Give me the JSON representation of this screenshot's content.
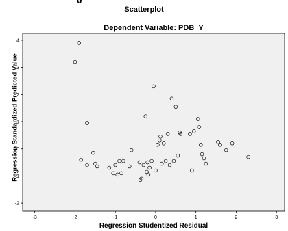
{
  "page_fragment": "g",
  "chart_data": {
    "type": "scatter",
    "title": "Scatterplot",
    "subtitle": "Dependent Variable: PDB_Y",
    "xlabel": "Regression Studentized Residual",
    "ylabel": "Regression Standardized Predicted Value",
    "xlim": [
      -3.3,
      3.2
    ],
    "ylim": [
      -2.3,
      4.25
    ],
    "x_ticks": [
      -3,
      -2,
      -1,
      0,
      1,
      2,
      3
    ],
    "y_ticks": [
      -2,
      -1,
      0,
      1,
      2,
      3,
      4
    ],
    "grid": false,
    "plot_background": "#f0f0f0",
    "marker": "open-circle",
    "points": [
      {
        "x": -2.0,
        "y": 3.2
      },
      {
        "x": -1.9,
        "y": 3.9
      },
      {
        "x": -1.7,
        "y": 0.95
      },
      {
        "x": -1.85,
        "y": -0.4
      },
      {
        "x": -1.7,
        "y": -0.6
      },
      {
        "x": -1.55,
        "y": -0.15
      },
      {
        "x": -1.5,
        "y": -0.55
      },
      {
        "x": -1.45,
        "y": -0.65
      },
      {
        "x": -1.15,
        "y": -0.7
      },
      {
        "x": -1.05,
        "y": -0.9
      },
      {
        "x": -1.0,
        "y": -0.6
      },
      {
        "x": -0.95,
        "y": -0.95
      },
      {
        "x": -0.9,
        "y": -0.45
      },
      {
        "x": -0.85,
        "y": -0.9
      },
      {
        "x": -0.8,
        "y": -0.45
      },
      {
        "x": -0.65,
        "y": -0.65
      },
      {
        "x": -0.6,
        "y": -0.05
      },
      {
        "x": -0.4,
        "y": -0.5
      },
      {
        "x": -0.38,
        "y": -1.15
      },
      {
        "x": -0.35,
        "y": -1.1
      },
      {
        "x": -0.3,
        "y": -0.6
      },
      {
        "x": -0.25,
        "y": 1.2
      },
      {
        "x": -0.22,
        "y": -0.85
      },
      {
        "x": -0.2,
        "y": -0.5
      },
      {
        "x": -0.18,
        "y": -0.95
      },
      {
        "x": -0.15,
        "y": -0.7
      },
      {
        "x": -0.1,
        "y": -0.45
      },
      {
        "x": -0.05,
        "y": 2.3
      },
      {
        "x": 0.0,
        "y": -0.8
      },
      {
        "x": 0.05,
        "y": 0.15
      },
      {
        "x": 0.1,
        "y": 0.3
      },
      {
        "x": 0.12,
        "y": 0.45
      },
      {
        "x": 0.15,
        "y": -0.55
      },
      {
        "x": 0.2,
        "y": 0.2
      },
      {
        "x": 0.25,
        "y": -0.45
      },
      {
        "x": 0.3,
        "y": 0.55
      },
      {
        "x": 0.35,
        "y": -0.6
      },
      {
        "x": 0.4,
        "y": 1.85
      },
      {
        "x": 0.45,
        "y": -0.45
      },
      {
        "x": 0.5,
        "y": 1.55
      },
      {
        "x": 0.55,
        "y": -0.25
      },
      {
        "x": 0.6,
        "y": 0.6
      },
      {
        "x": 0.62,
        "y": 0.55
      },
      {
        "x": 0.85,
        "y": 0.55
      },
      {
        "x": 0.9,
        "y": -0.8
      },
      {
        "x": 0.95,
        "y": 0.65
      },
      {
        "x": 1.05,
        "y": 1.1
      },
      {
        "x": 1.08,
        "y": 0.8
      },
      {
        "x": 1.12,
        "y": 0.15
      },
      {
        "x": 1.15,
        "y": -0.2
      },
      {
        "x": 1.2,
        "y": -0.35
      },
      {
        "x": 1.25,
        "y": -0.55
      },
      {
        "x": 1.55,
        "y": 0.25
      },
      {
        "x": 1.6,
        "y": 0.15
      },
      {
        "x": 1.75,
        "y": -0.05
      },
      {
        "x": 1.9,
        "y": 0.2
      },
      {
        "x": 2.3,
        "y": -0.3
      }
    ]
  }
}
